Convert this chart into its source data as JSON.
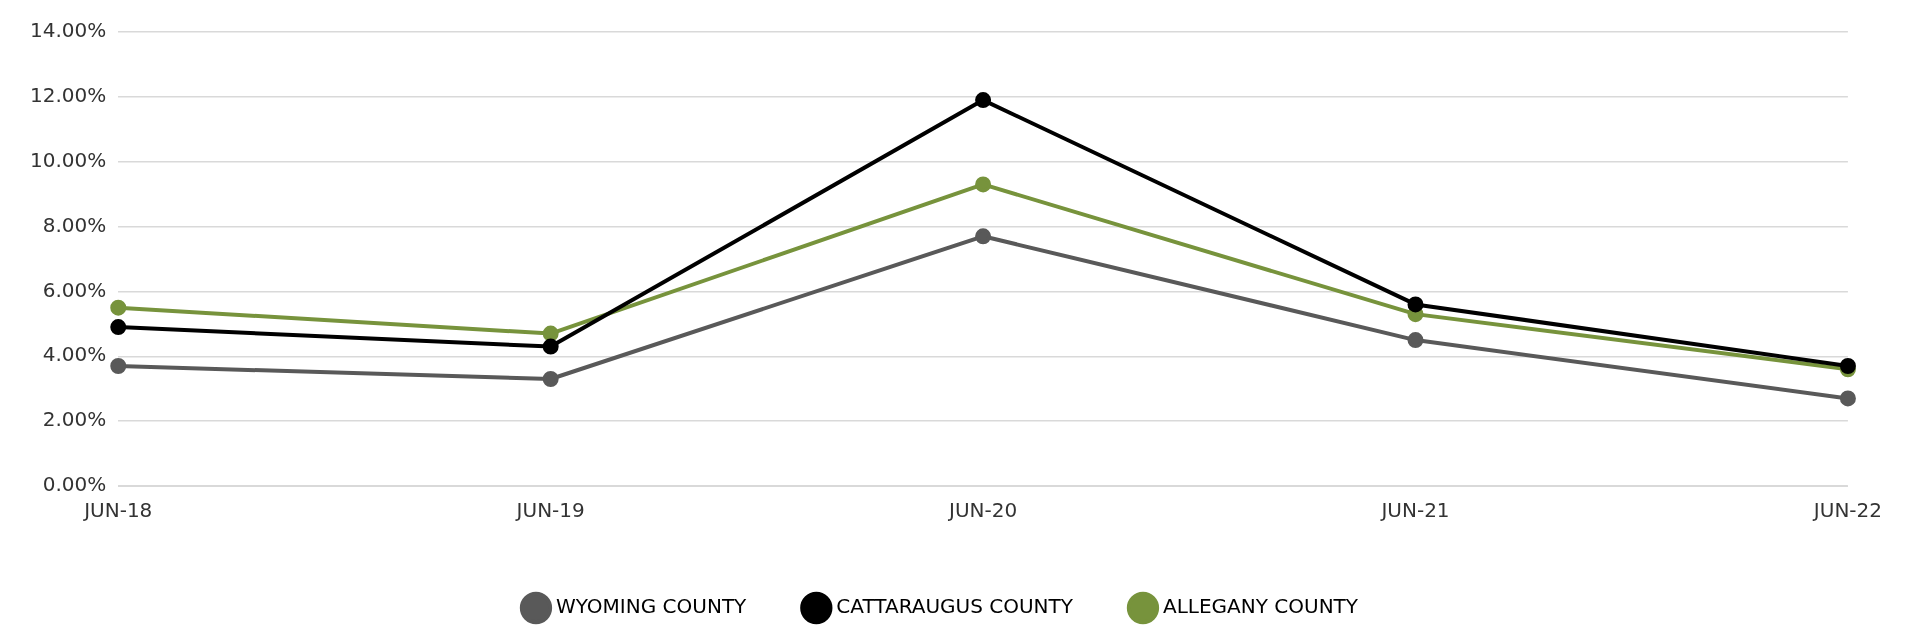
{
  "chart_data": {
    "type": "line",
    "categories": [
      "JUN-18",
      "JUN-19",
      "JUN-20",
      "JUN-21",
      "JUN-22"
    ],
    "series": [
      {
        "name": "ALLEGANY COUNTY",
        "color": "#77933c",
        "values": [
          5.5,
          4.7,
          9.3,
          5.3,
          3.6
        ]
      },
      {
        "name": "CATTARAUGUS COUNTY",
        "color": "#000000",
        "values": [
          4.9,
          4.3,
          11.9,
          5.6,
          3.7
        ]
      },
      {
        "name": "WYOMING COUNTY",
        "color": "#595959",
        "values": [
          3.7,
          3.3,
          7.7,
          4.5,
          2.7
        ]
      }
    ],
    "ylim": [
      0,
      14
    ],
    "yticks": [
      {
        "value": 0,
        "label": "0.00%"
      },
      {
        "value": 2,
        "label": "2.00%"
      },
      {
        "value": 4,
        "label": "4.00%"
      },
      {
        "value": 6,
        "label": "6.00%"
      },
      {
        "value": 8,
        "label": "8.00%"
      },
      {
        "value": 10,
        "label": "10.00%"
      },
      {
        "value": 12,
        "label": "12.00%"
      },
      {
        "value": 14,
        "label": "14.00%"
      }
    ],
    "grid": "y",
    "legend": "bottom",
    "marker": "circle",
    "line_style": "solid"
  }
}
